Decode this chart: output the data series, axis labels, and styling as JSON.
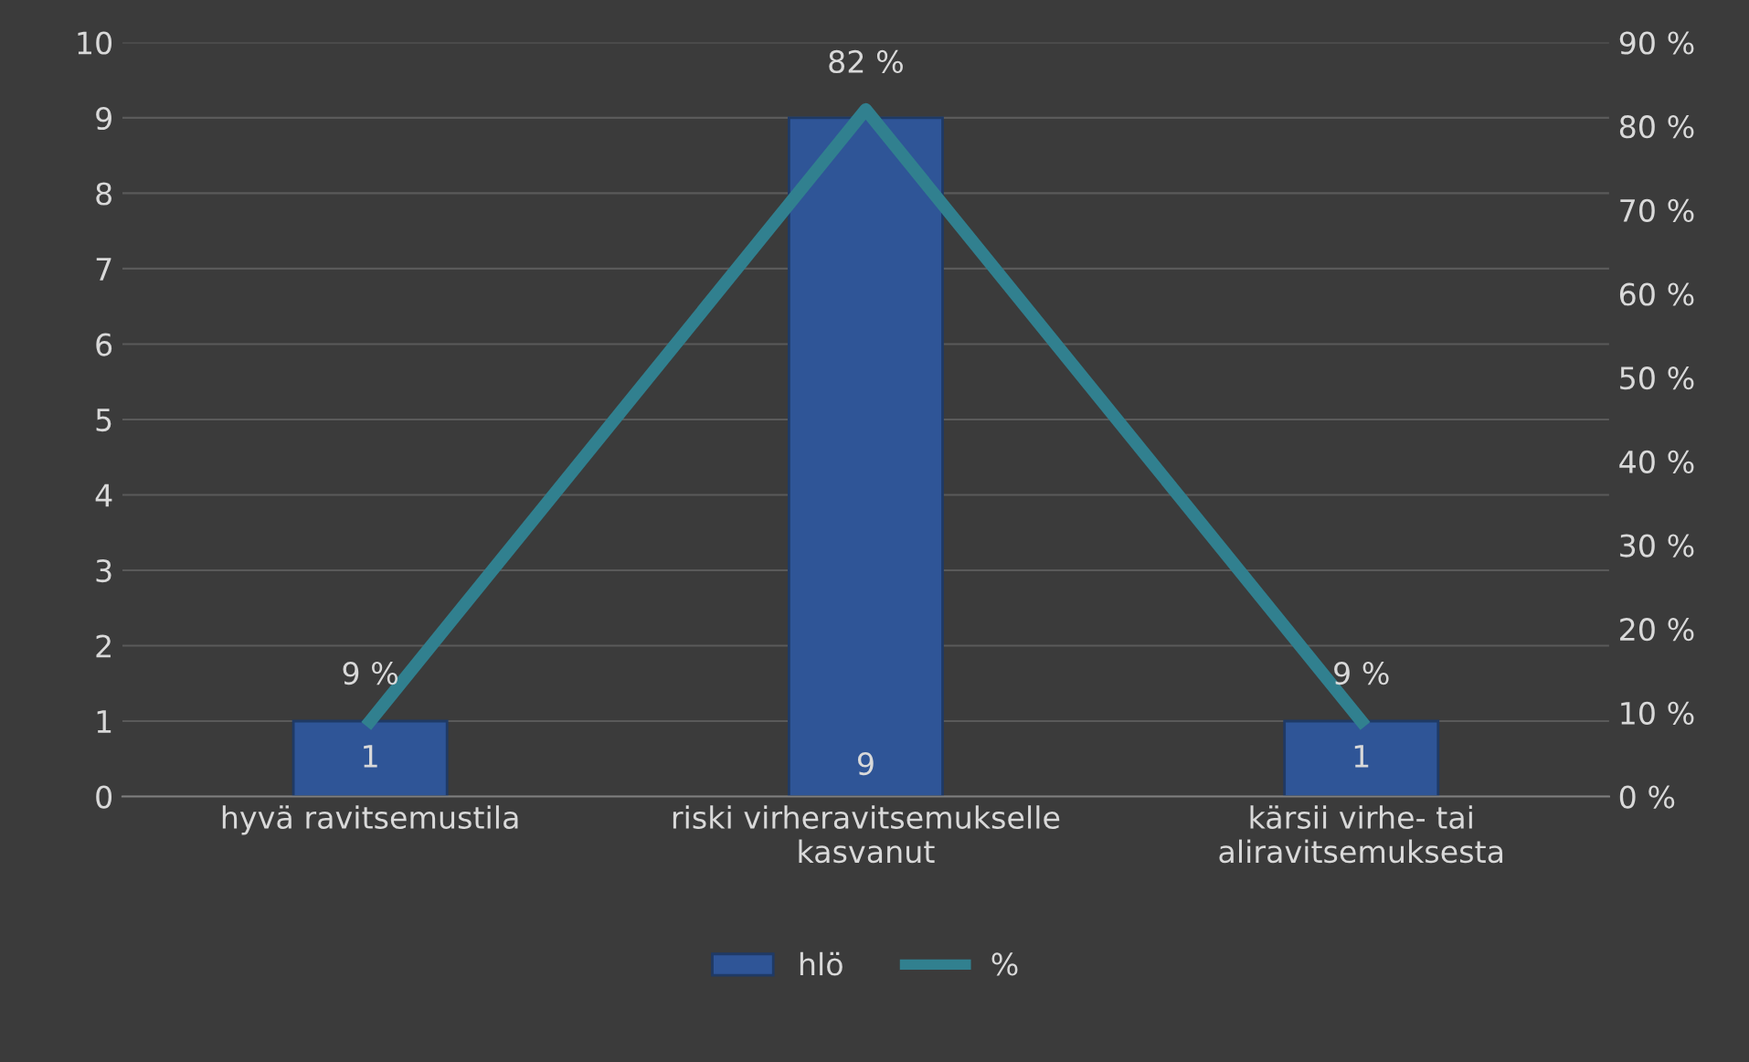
{
  "chart_data": {
    "type": "bar",
    "categories": [
      "hyvä ravitsemustila",
      "riski virheravitsemukselle\nkasvanut",
      "kärsii virhe- tai\naliravitsemuksesta"
    ],
    "series": [
      {
        "name": "hlö",
        "color": "#2f5597",
        "values": [
          1,
          9,
          1
        ],
        "value_labels": [
          "1",
          "9",
          "1"
        ]
      },
      {
        "name": "%",
        "type": "line",
        "axis": "y2",
        "color": "#31808f",
        "values": [
          9,
          82,
          9
        ],
        "value_labels": [
          "9 %",
          "82 %",
          "9 %"
        ]
      }
    ],
    "ylim": [
      0,
      10
    ],
    "yticks": [
      0,
      1,
      2,
      3,
      4,
      5,
      6,
      7,
      8,
      9,
      10
    ],
    "y2lim": [
      0,
      90
    ],
    "y2ticks": [
      {
        "value": 0,
        "label": "0 %"
      },
      {
        "value": 10,
        "label": "10 %"
      },
      {
        "value": 20,
        "label": "20 %"
      },
      {
        "value": 30,
        "label": "30 %"
      },
      {
        "value": 40,
        "label": "40 %"
      },
      {
        "value": 50,
        "label": "50 %"
      },
      {
        "value": 60,
        "label": "60 %"
      },
      {
        "value": 70,
        "label": "70 %"
      },
      {
        "value": 80,
        "label": "80 %"
      },
      {
        "value": 90,
        "label": "90 %"
      }
    ],
    "grid": "y",
    "legend": "bottom",
    "marker": "none"
  }
}
